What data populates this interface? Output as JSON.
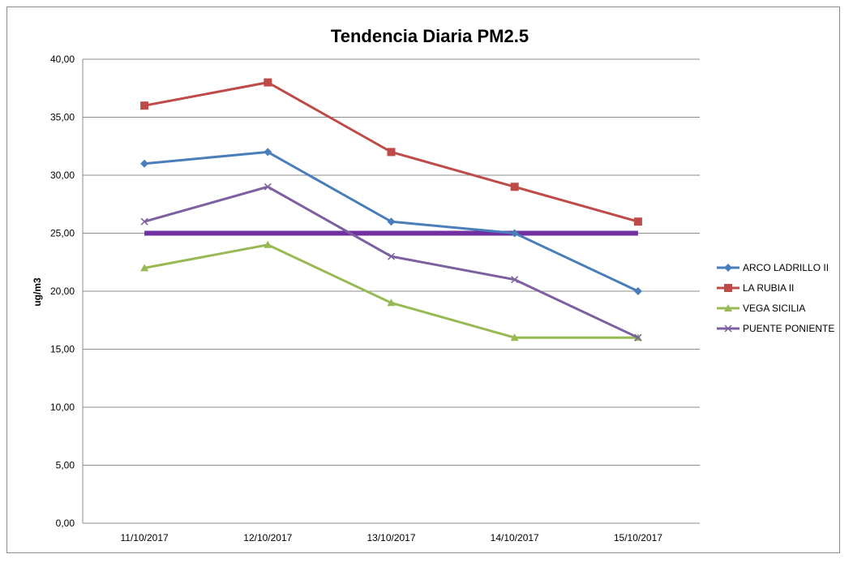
{
  "chart_data": {
    "type": "line",
    "title": "Tendencia  Diaria PM2.5",
    "xlabel": "",
    "ylabel": "ug/m3",
    "ylim": [
      0,
      40
    ],
    "yticks": [
      "0,00",
      "5,00",
      "10,00",
      "15,00",
      "20,00",
      "25,00",
      "30,00",
      "35,00",
      "40,00"
    ],
    "grid": true,
    "legend_position": "right",
    "categories": [
      "11/10/2017",
      "12/10/2017",
      "13/10/2017",
      "14/10/2017",
      "15/10/2017"
    ],
    "series": [
      {
        "name": "ARCO LADRILLO II",
        "values": [
          31,
          32,
          26,
          25,
          20
        ],
        "color": "#4a7ebb",
        "marker": "diamond"
      },
      {
        "name": "LA RUBIA II",
        "values": [
          36,
          38,
          32,
          29,
          26
        ],
        "color": "#be4b48",
        "marker": "square"
      },
      {
        "name": "VEGA SICILIA",
        "values": [
          22,
          24,
          19,
          16,
          16
        ],
        "color": "#98b954",
        "marker": "triangle"
      },
      {
        "name": "PUENTE PONIENTE",
        "values": [
          26,
          29,
          23,
          21,
          16
        ],
        "color": "#7d60a0",
        "marker": "x"
      }
    ],
    "reference_line": {
      "value": 25,
      "color": "#7030a0"
    }
  }
}
